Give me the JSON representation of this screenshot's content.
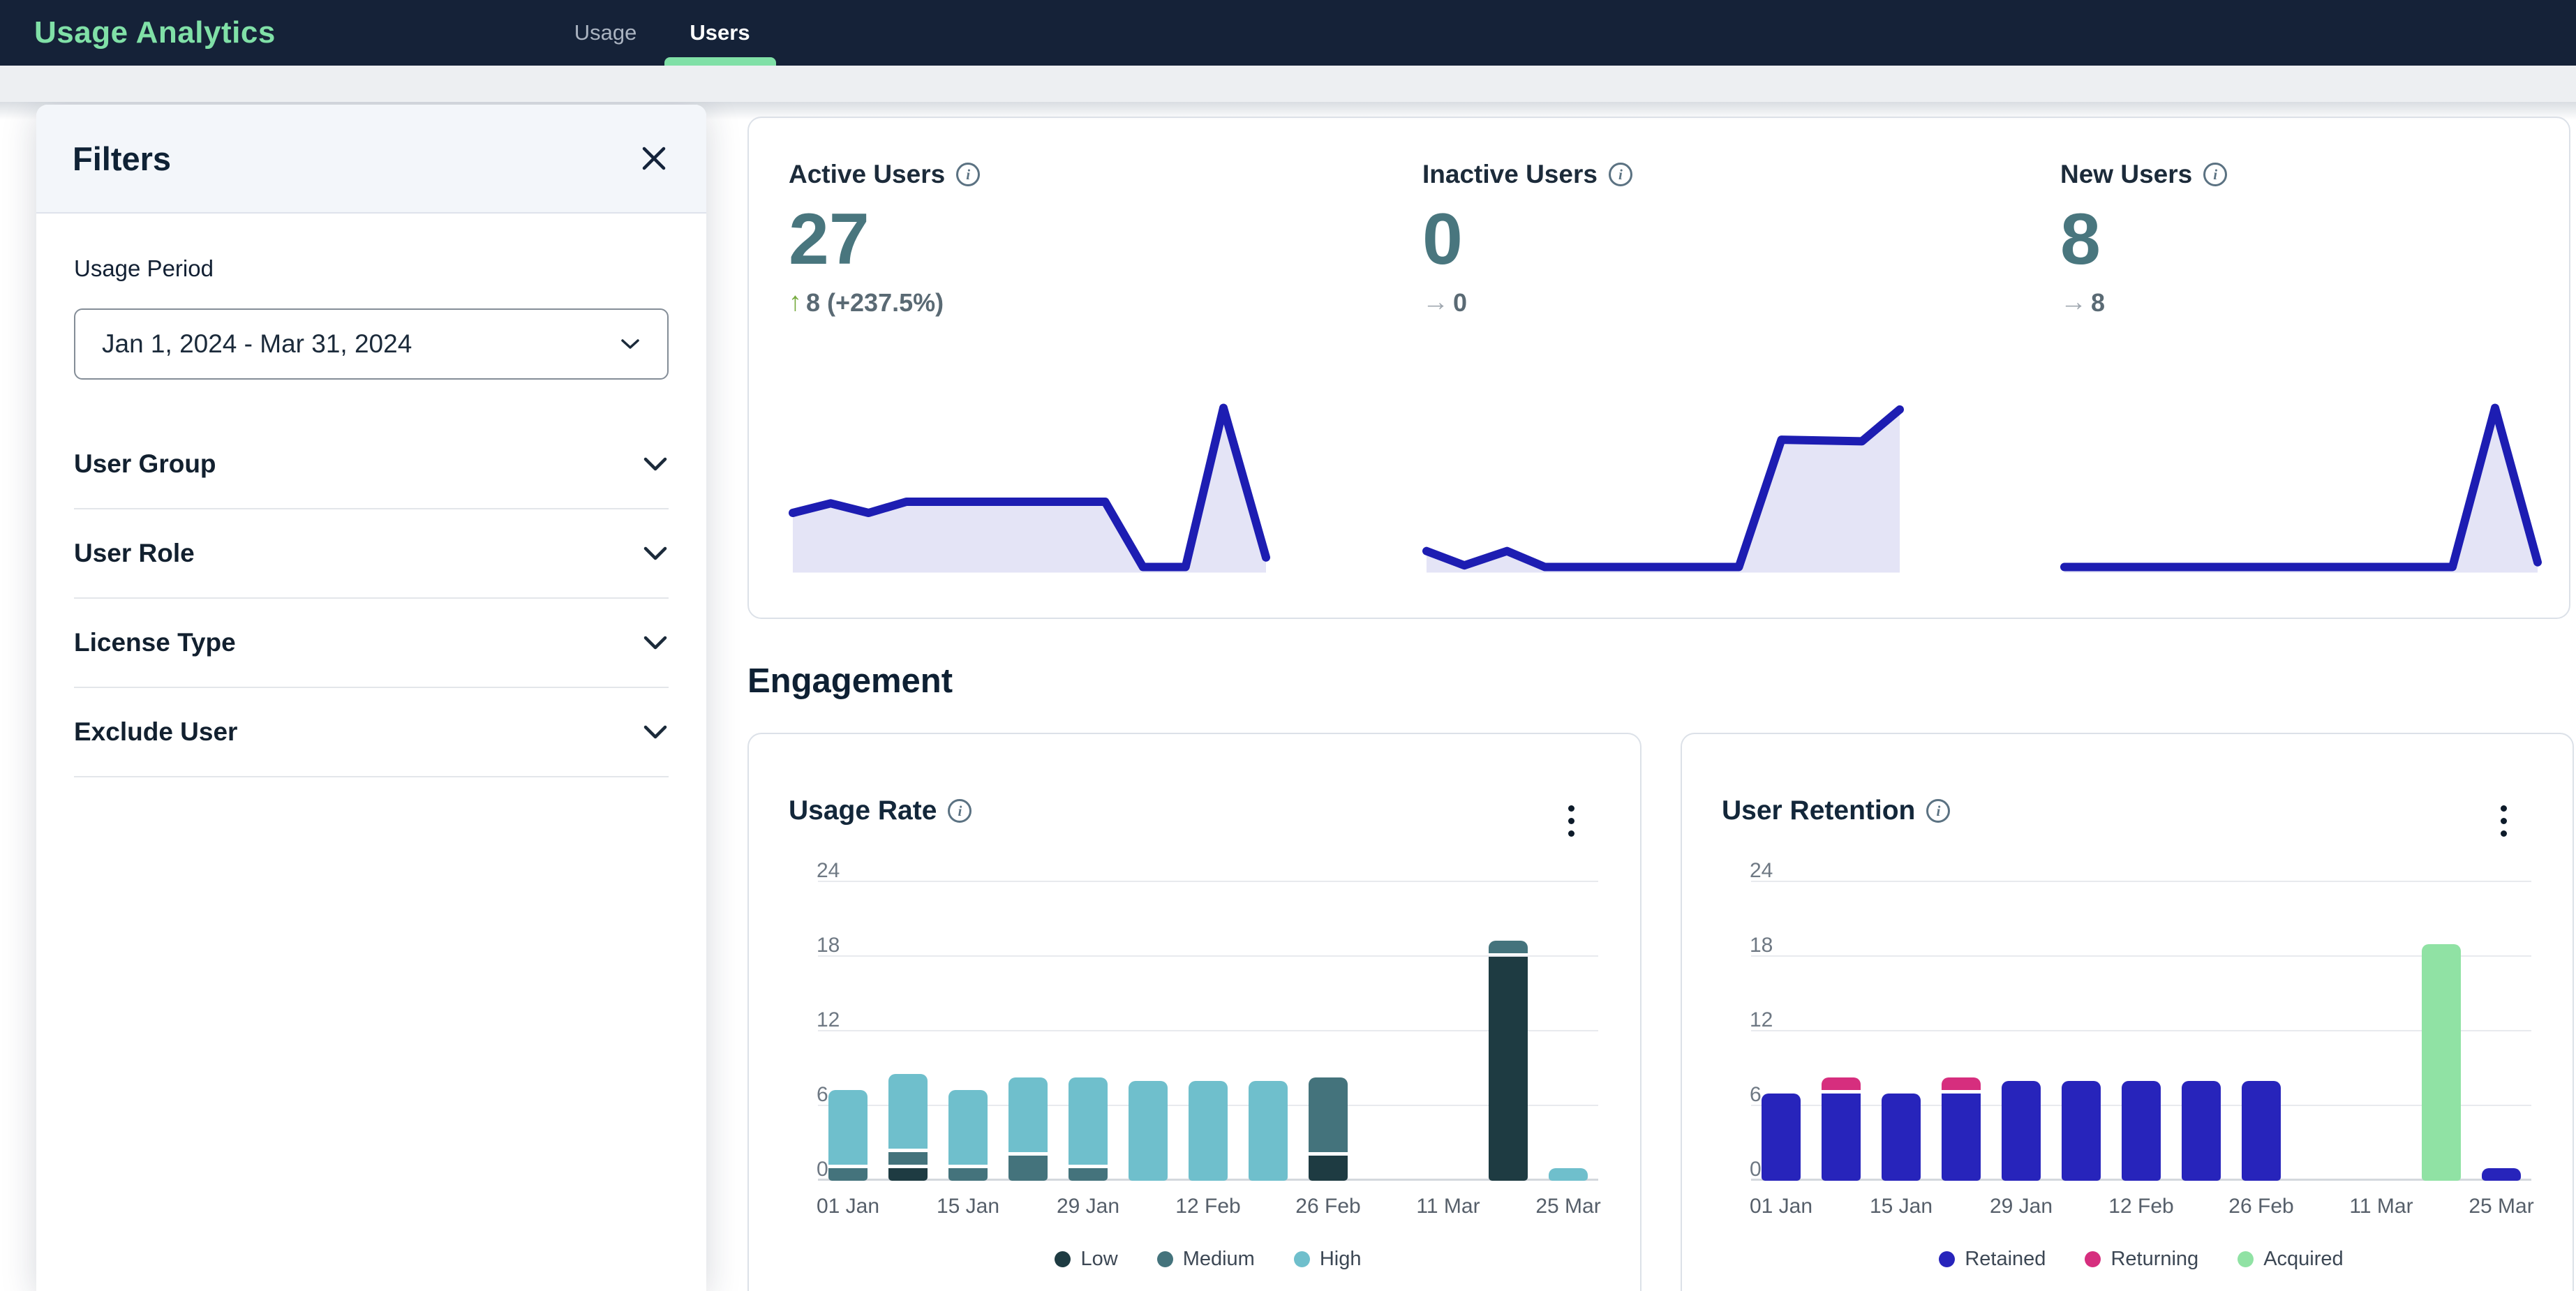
{
  "navbar": {
    "brand": "Usage Analytics",
    "tabs": [
      {
        "label": "Usage",
        "active": false
      },
      {
        "label": "Users",
        "active": true
      }
    ]
  },
  "filters": {
    "title": "Filters",
    "usage_period_label": "Usage Period",
    "usage_period_value": "Jan 1, 2024 - Mar 31, 2024",
    "sections": [
      {
        "label": "User Group"
      },
      {
        "label": "User Role"
      },
      {
        "label": "License Type"
      },
      {
        "label": "Exclude User"
      }
    ]
  },
  "kpis": [
    {
      "label": "Active Users",
      "value": "27",
      "delta": "8 (+237.5%)",
      "trend": "up",
      "spark_index": 2
    },
    {
      "label": "Inactive Users",
      "value": "0",
      "delta": "0",
      "trend": "flat",
      "spark_index": 3
    },
    {
      "label": "New Users",
      "value": "8",
      "delta": "8",
      "trend": "flat",
      "spark_index": 4
    }
  ],
  "engagement_heading": "Engagement",
  "colors": {
    "navbar_bg": "#152238",
    "brand_green": "#80e0a7",
    "kpi_value": "#49767e",
    "spark_line": "#1d1db2",
    "spark_fill": "#e4e4f6"
  },
  "chart_data": [
    {
      "type": "bar",
      "title": "Usage Rate",
      "stacked": true,
      "n_bars": 13,
      "x_tick_labels": [
        "01 Jan",
        "15 Jan",
        "29 Jan",
        "12 Feb",
        "26 Feb",
        "11 Mar",
        "25 Mar"
      ],
      "x_label_every": 2,
      "ylim": [
        0,
        24
      ],
      "yticks": [
        0,
        6,
        12,
        18,
        24
      ],
      "grid": true,
      "legend_position": "bottom",
      "series": [
        {
          "name": "Low",
          "color": "#1e3b42",
          "values": [
            0,
            1,
            0,
            0,
            0,
            0,
            0,
            0,
            2,
            0,
            0,
            18,
            0
          ]
        },
        {
          "name": "Medium",
          "color": "#44737c",
          "values": [
            1,
            1,
            1,
            2,
            1,
            0,
            0,
            0,
            6,
            0,
            0,
            1,
            0
          ]
        },
        {
          "name": "High",
          "color": "#6fbfcc",
          "values": [
            6,
            6,
            6,
            6,
            7,
            8,
            8,
            8,
            0,
            0,
            0,
            0,
            1
          ]
        }
      ]
    },
    {
      "type": "bar",
      "title": "User Retention",
      "stacked": true,
      "n_bars": 13,
      "x_tick_labels": [
        "01 Jan",
        "15 Jan",
        "29 Jan",
        "12 Feb",
        "26 Feb",
        "11 Mar",
        "25 Mar"
      ],
      "x_label_every": 2,
      "ylim": [
        0,
        24
      ],
      "yticks": [
        0,
        6,
        12,
        18,
        24
      ],
      "grid": true,
      "legend_position": "bottom",
      "series": [
        {
          "name": "Retained",
          "color": "#2724bb",
          "values": [
            7,
            7,
            7,
            7,
            8,
            8,
            8,
            8,
            8,
            0,
            0,
            0,
            1
          ]
        },
        {
          "name": "Returning",
          "color": "#d62e7e",
          "values": [
            0,
            1,
            0,
            1,
            0,
            0,
            0,
            0,
            0,
            0,
            0,
            0,
            0
          ]
        },
        {
          "name": "Acquired",
          "color": "#90e2a4",
          "values": [
            0,
            0,
            0,
            0,
            0,
            0,
            0,
            0,
            0,
            0,
            0,
            19,
            0
          ]
        }
      ]
    },
    {
      "type": "area",
      "name": "active-users-trend",
      "line_color": "#1d1db2",
      "fill_color": "#e4e4f6",
      "points": [
        [
          0,
          34
        ],
        [
          8,
          40
        ],
        [
          16,
          34
        ],
        [
          24,
          41
        ],
        [
          66,
          41
        ],
        [
          74,
          0
        ],
        [
          83,
          0
        ],
        [
          91,
          100
        ],
        [
          100,
          6
        ]
      ]
    },
    {
      "type": "area",
      "name": "inactive-users-trend",
      "line_color": "#1d1db2",
      "fill_color": "#e4e4f6",
      "points": [
        [
          0,
          10
        ],
        [
          8,
          1
        ],
        [
          17,
          10
        ],
        [
          25,
          0
        ],
        [
          66,
          0
        ],
        [
          75,
          80
        ],
        [
          92,
          79
        ],
        [
          100,
          99
        ]
      ]
    },
    {
      "type": "area",
      "name": "new-users-trend",
      "line_color": "#1d1db2",
      "fill_color": "#e4e4f6",
      "points": [
        [
          0,
          0
        ],
        [
          82,
          0
        ],
        [
          91,
          100
        ],
        [
          100,
          3
        ]
      ]
    }
  ]
}
